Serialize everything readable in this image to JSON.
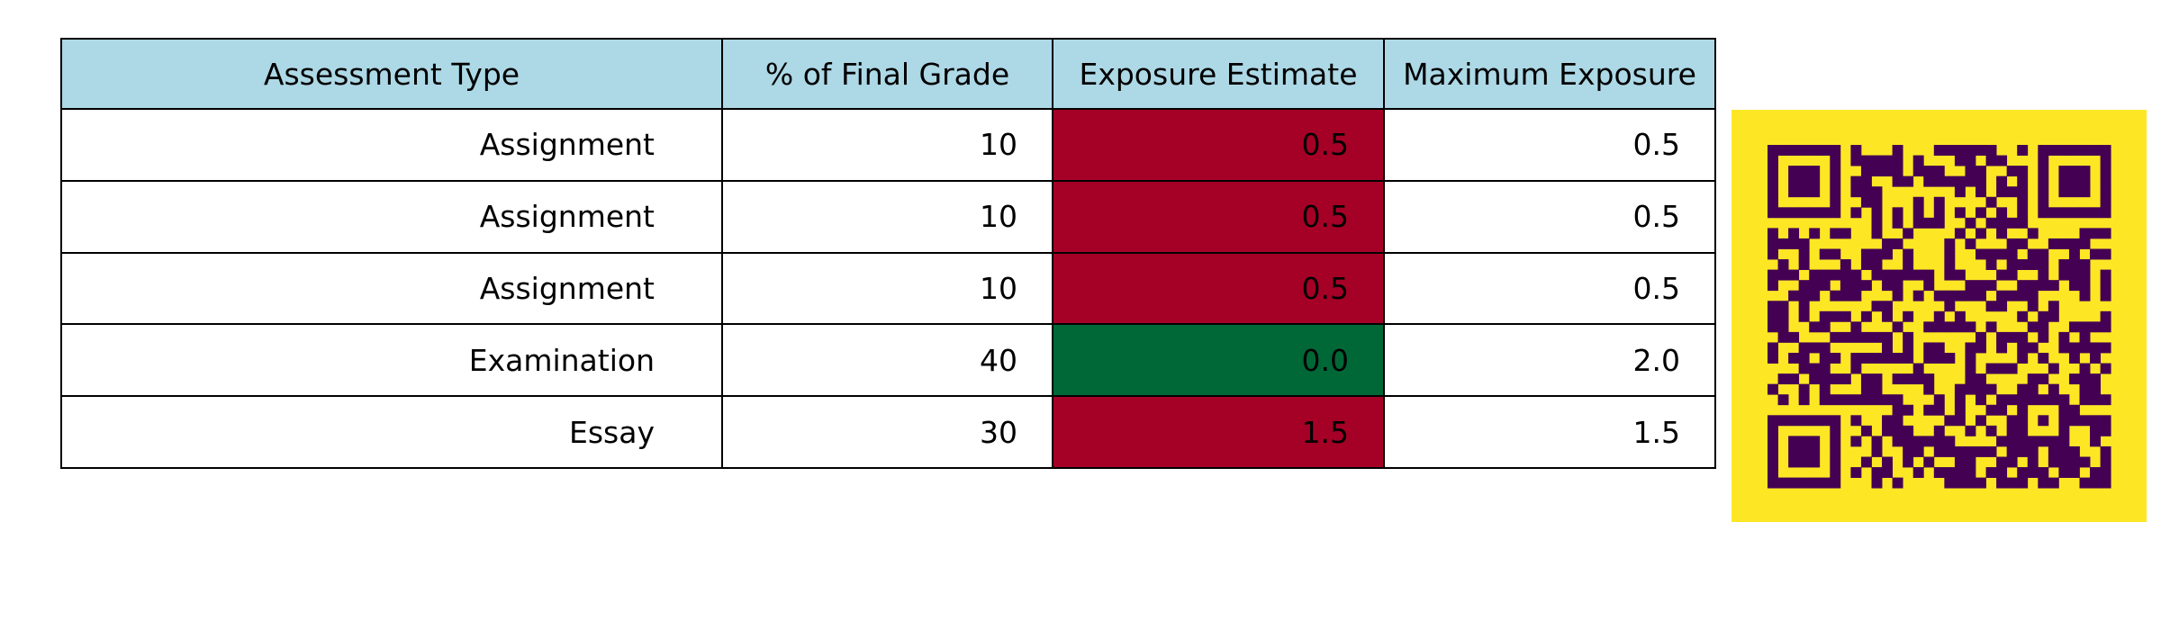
{
  "chart_data": {
    "type": "table",
    "columns": [
      "Assessment Type",
      "% of Final Grade",
      "Exposure Estimate",
      "Maximum Exposure"
    ],
    "rows": [
      [
        "Assignment",
        "10",
        "0.5",
        "0.5"
      ],
      [
        "Assignment",
        "10",
        "0.5",
        "0.5"
      ],
      [
        "Assignment",
        "10",
        "0.5",
        "0.5"
      ],
      [
        "Examination",
        "40",
        "0.0",
        "2.0"
      ],
      [
        "Essay",
        "30",
        "1.5",
        "1.5"
      ]
    ],
    "exposure_cell_colors": [
      "#a50026",
      "#a50026",
      "#a50026",
      "#006837",
      "#a50026"
    ],
    "header_color": "#add8e6",
    "qr_code": {
      "background": "#fde725",
      "foreground": "#440154",
      "modules": 33
    }
  }
}
